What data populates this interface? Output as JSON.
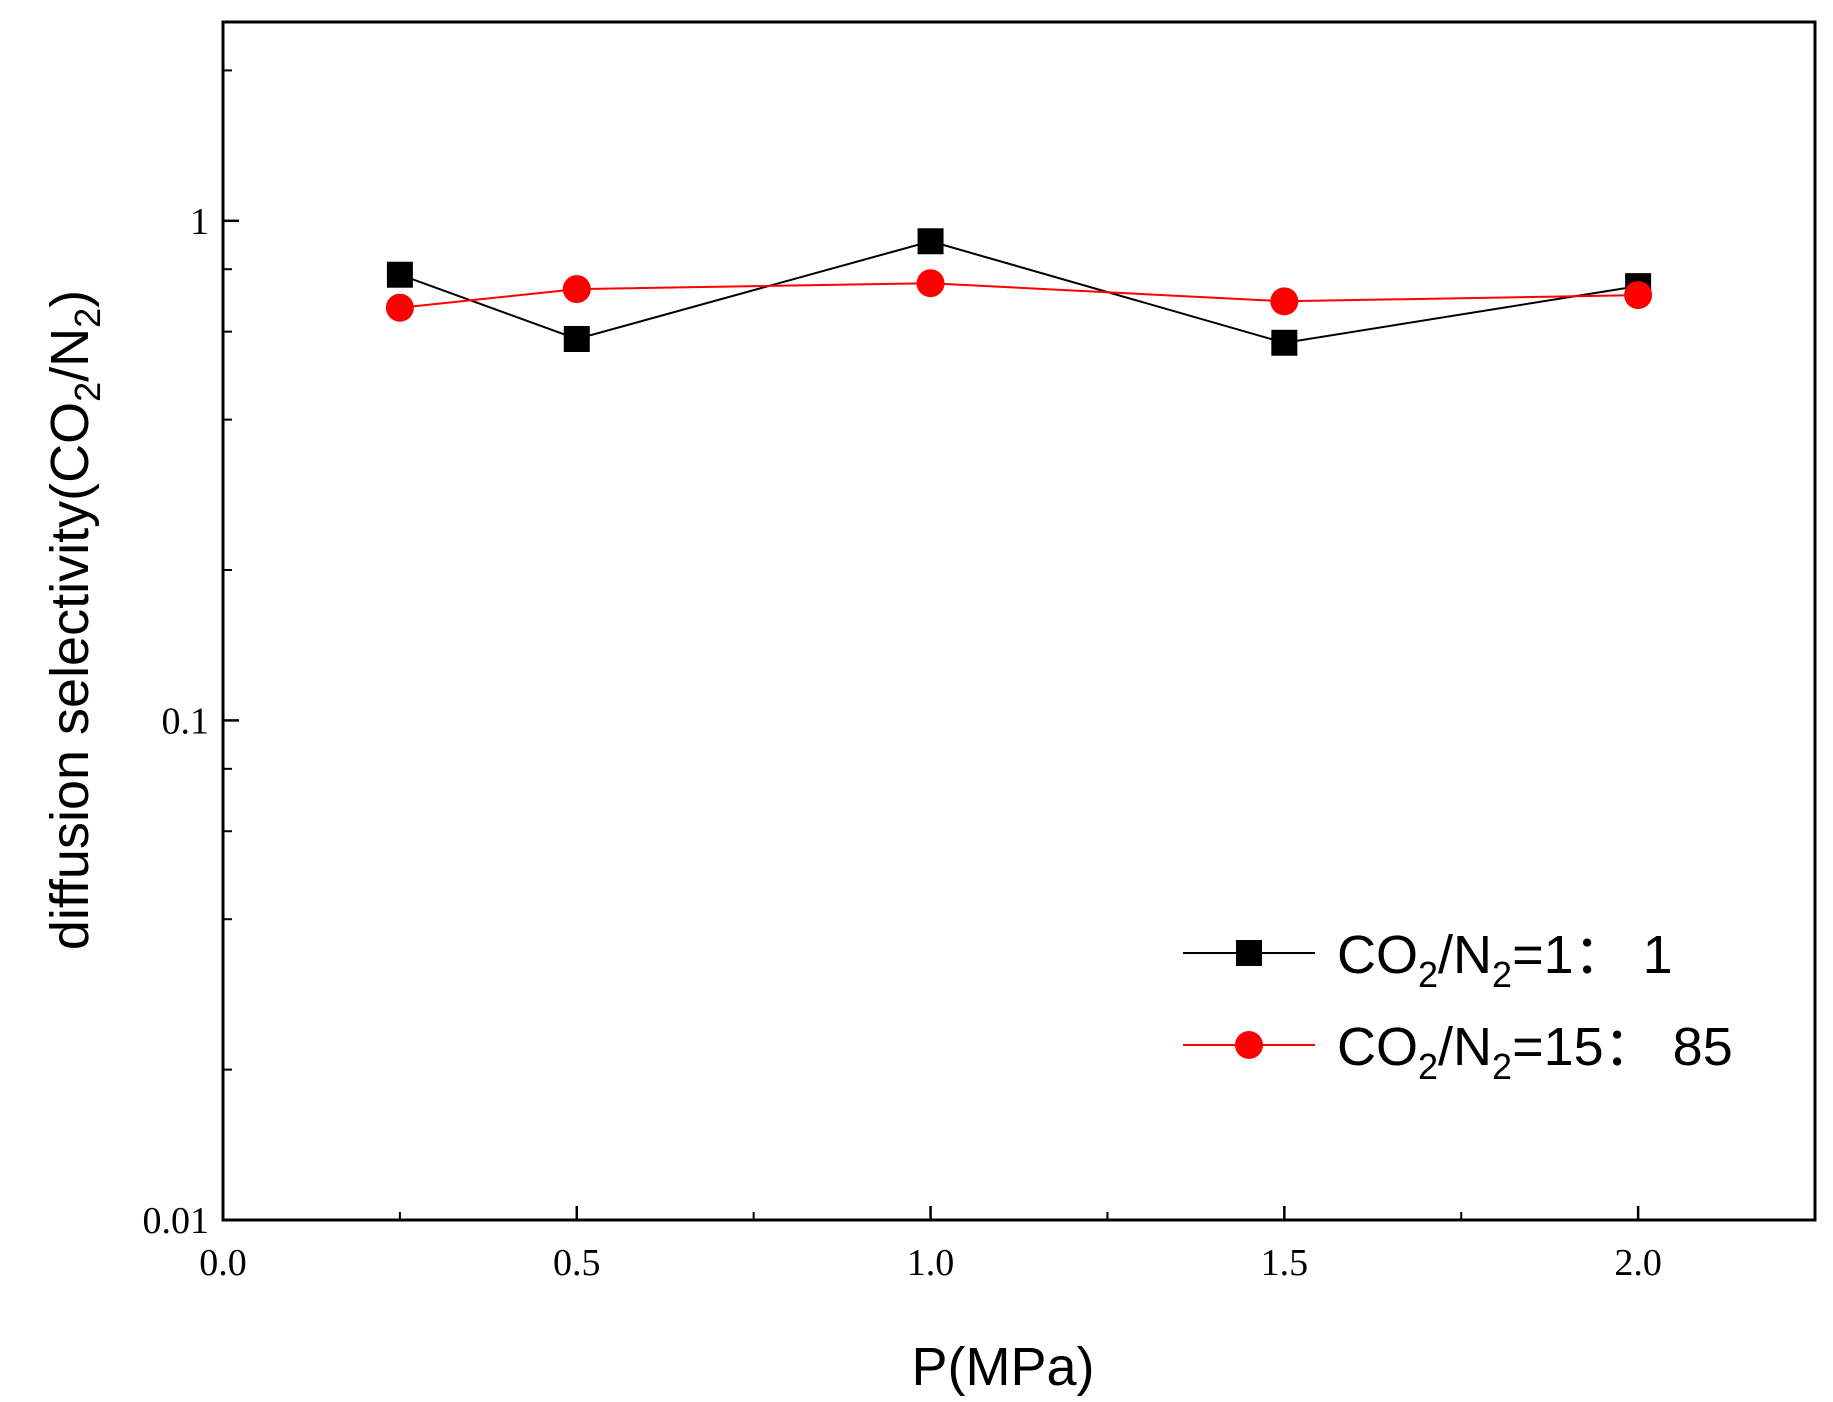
{
  "chart_data": {
    "type": "line",
    "xlabel": "P(MPa)",
    "ylabel": {
      "main": "diffusion selectivity(CO",
      "sub1": "2",
      "mid": "/N",
      "sub2": "2",
      "end": ")"
    },
    "xlim": [
      0.0,
      2.25
    ],
    "ylim": [
      0.01,
      2.5
    ],
    "yscale": "log",
    "x_ticks": [
      0.0,
      0.5,
      1.0,
      1.5,
      2.0
    ],
    "x_tick_labels": [
      "0.0",
      "0.5",
      "1.0",
      "1.5",
      "2.0"
    ],
    "y_ticks": [
      0.01,
      0.1,
      1
    ],
    "y_tick_labels": [
      "0.01",
      "0.1",
      "1"
    ],
    "legend_position": "bottom-right",
    "series": [
      {
        "name": "CO2/N2=1:1",
        "label_parts": {
          "a": "CO",
          "s1": "2",
          "b": "/N",
          "s2": "2",
          "c": "=1： 1"
        },
        "color": "#000000",
        "marker": "square",
        "x": [
          0.25,
          0.5,
          1.0,
          1.5,
          2.0
        ],
        "y": [
          0.78,
          0.58,
          0.91,
          0.57,
          0.74
        ]
      },
      {
        "name": "CO2/N2=15:85",
        "label_parts": {
          "a": "CO",
          "s1": "2",
          "b": "/N",
          "s2": "2",
          "c": "=15： 85"
        },
        "color": "#ff0000",
        "marker": "circle",
        "x": [
          0.25,
          0.5,
          1.0,
          1.5,
          2.0
        ],
        "y": [
          0.67,
          0.73,
          0.75,
          0.69,
          0.71
        ]
      }
    ]
  }
}
